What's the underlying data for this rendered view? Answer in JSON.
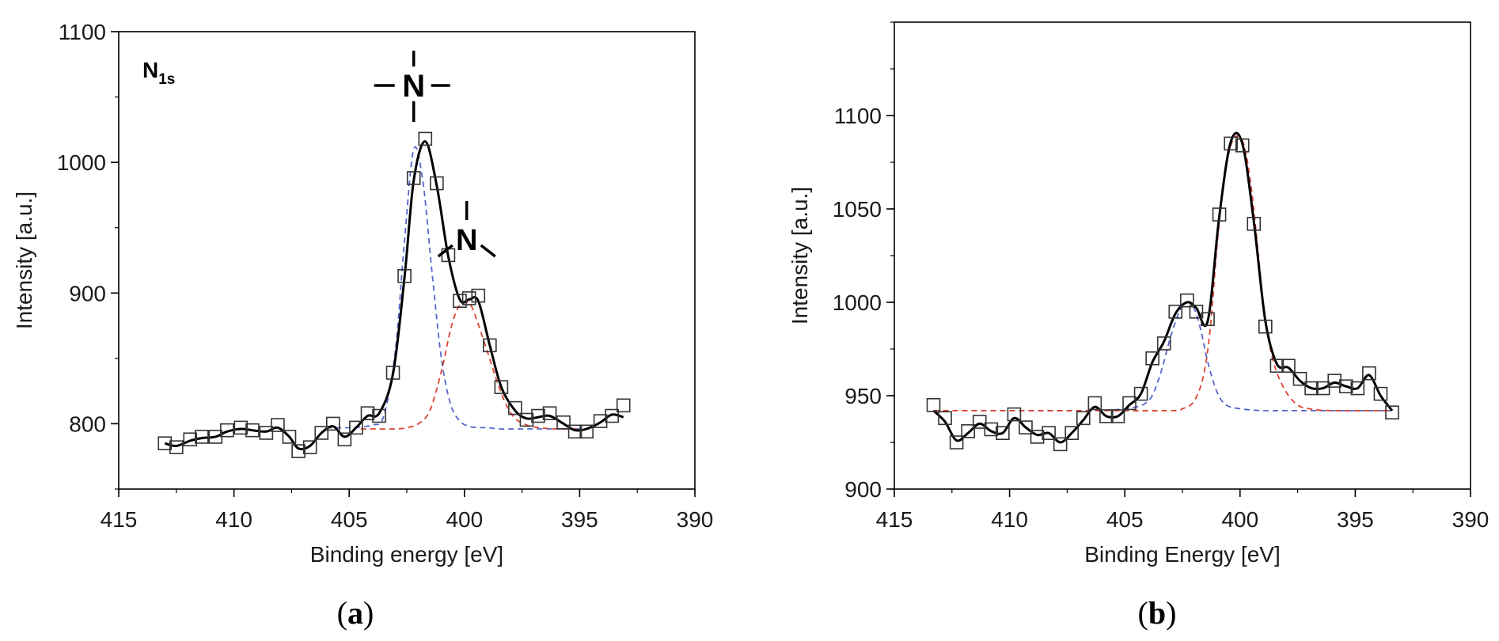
{
  "chart_data": [
    {
      "panel": "a",
      "type": "scatter",
      "xlabel": "Binding energy [eV]",
      "ylabel": "Intensity [a.u.]",
      "xlim": [
        415,
        390
      ],
      "ylim": [
        750,
        1100
      ],
      "xticks": [
        415,
        410,
        405,
        400,
        395,
        390
      ],
      "yticks": [
        800,
        900,
        1000,
        1100
      ],
      "annotations": {
        "label": "N",
        "subscript": "1s",
        "peak_symbol_1": "N",
        "peak_symbol_2": "N"
      },
      "colors": {
        "fit": "#000000",
        "component_1": "#5566cc",
        "component_2": "#dd4433"
      },
      "series": [
        {
          "kind": "markers",
          "x": [
            413.0,
            412.5,
            411.9,
            411.4,
            410.8,
            410.3,
            409.7,
            409.2,
            408.6,
            408.1,
            407.6,
            407.2,
            406.7,
            406.2,
            405.7,
            405.2,
            404.7,
            404.2,
            403.7,
            403.1,
            402.6,
            402.2,
            401.7,
            401.2,
            400.7,
            400.2,
            399.8,
            399.4,
            398.9,
            398.4,
            397.8,
            397.3,
            396.8,
            396.3,
            395.7,
            395.2,
            394.7,
            394.1,
            393.6,
            393.1
          ],
          "y": [
            785,
            782,
            788,
            790,
            790,
            795,
            797,
            795,
            793,
            799,
            790,
            779,
            782,
            793,
            800,
            788,
            797,
            808,
            806,
            839,
            913,
            988,
            1018,
            984,
            929,
            894,
            896,
            898,
            860,
            828,
            812,
            803,
            806,
            808,
            801,
            794,
            794,
            802,
            806,
            814
          ]
        },
        {
          "kind": "fit",
          "x": [
            413.0,
            412.5,
            411.9,
            411.4,
            410.8,
            410.3,
            409.7,
            409.2,
            408.6,
            408.1,
            407.6,
            407.2,
            406.7,
            406.2,
            405.7,
            405.2,
            404.7,
            404.2,
            403.7,
            403.1,
            402.6,
            402.2,
            401.7,
            401.2,
            400.7,
            400.2,
            399.8,
            399.4,
            398.9,
            398.4,
            397.8,
            397.3,
            396.8,
            396.3,
            395.7,
            395.2,
            394.7,
            394.1,
            393.6,
            393.1
          ],
          "y": [
            785,
            783,
            787,
            789,
            790,
            794,
            796,
            795,
            794,
            797,
            790,
            781,
            783,
            793,
            798,
            790,
            797,
            806,
            808,
            838,
            912,
            986,
            1016,
            982,
            928,
            895,
            895,
            894,
            860,
            828,
            810,
            804,
            805,
            806,
            800,
            795,
            796,
            801,
            807,
            805
          ]
        },
        {
          "kind": "component-1",
          "x": [
            406.0,
            405.0,
            404.0,
            403.5,
            403.0,
            402.6,
            402.2,
            401.8,
            401.4,
            401.0,
            400.6,
            400.2,
            399.8,
            399.4,
            399.0,
            398.5,
            398.0,
            397.0,
            396.0,
            395.0
          ],
          "y": [
            797,
            797,
            799,
            806,
            855,
            940,
            1010,
            985,
            915,
            850,
            815,
            802,
            798,
            797,
            797,
            796,
            796,
            796,
            796,
            796
          ]
        },
        {
          "kind": "component-2",
          "x": [
            404.5,
            404.0,
            403.0,
            402.5,
            402.0,
            401.5,
            401.0,
            400.6,
            400.3,
            400.0,
            399.7,
            399.4,
            399.0,
            398.6,
            398.2,
            397.8,
            397.3,
            396.8,
            396.0,
            395.0
          ],
          "y": [
            796,
            796,
            796,
            797,
            800,
            810,
            840,
            872,
            888,
            893,
            890,
            876,
            855,
            833,
            815,
            804,
            799,
            797,
            796,
            796
          ]
        }
      ]
    },
    {
      "panel": "b",
      "type": "scatter",
      "xlabel": "Binding Energy [eV]",
      "ylabel": "Intensity [a.u.]",
      "xlim": [
        415,
        390
      ],
      "ylim": [
        900,
        1150
      ],
      "xticks": [
        415,
        410,
        405,
        400,
        395,
        390
      ],
      "yticks": [
        900,
        950,
        1000,
        1050,
        1100
      ],
      "colors": {
        "fit": "#000000",
        "component_1": "#5566cc",
        "component_2": "#dd4433"
      },
      "series": [
        {
          "kind": "markers",
          "x": [
            413.3,
            412.8,
            412.3,
            411.8,
            411.3,
            410.8,
            410.3,
            409.8,
            409.3,
            408.8,
            408.3,
            407.8,
            407.3,
            406.8,
            406.3,
            405.8,
            405.3,
            404.8,
            404.3,
            403.8,
            403.3,
            402.8,
            402.3,
            401.9,
            401.4,
            400.9,
            400.4,
            399.9,
            399.4,
            398.9,
            398.4,
            397.9,
            397.4,
            396.9,
            396.4,
            395.9,
            395.4,
            394.9,
            394.4,
            393.9,
            393.4
          ],
          "y": [
            945,
            938,
            925,
            931,
            936,
            932,
            930,
            940,
            933,
            928,
            930,
            924,
            930,
            938,
            946,
            939,
            939,
            946,
            951,
            970,
            978,
            995,
            1001,
            995,
            991,
            1047,
            1085,
            1084,
            1042,
            987,
            966,
            966,
            959,
            954,
            954,
            958,
            955,
            954,
            962,
            951,
            941
          ]
        },
        {
          "kind": "fit",
          "x": [
            413.3,
            412.8,
            412.3,
            411.8,
            411.3,
            410.8,
            410.3,
            409.8,
            409.3,
            408.8,
            408.3,
            407.8,
            407.3,
            406.8,
            406.3,
            405.8,
            405.3,
            404.8,
            404.3,
            403.8,
            403.3,
            402.8,
            402.3,
            401.9,
            401.4,
            400.9,
            400.4,
            399.9,
            399.4,
            398.9,
            398.4,
            397.9,
            397.4,
            396.9,
            396.4,
            395.9,
            395.4,
            394.9,
            394.4,
            393.9,
            393.4
          ],
          "y": [
            942,
            936,
            926,
            930,
            935,
            931,
            930,
            938,
            933,
            929,
            930,
            925,
            930,
            937,
            944,
            939,
            939,
            945,
            951,
            968,
            979,
            994,
            1000,
            997,
            990,
            1046,
            1086,
            1085,
            1043,
            990,
            967,
            965,
            958,
            954,
            954,
            957,
            955,
            954,
            961,
            950,
            942
          ]
        },
        {
          "kind": "component-1",
          "x": [
            413.3,
            410.0,
            407.0,
            405.0,
            404.0,
            403.5,
            403.0,
            402.6,
            402.3,
            402.0,
            401.7,
            401.4,
            401.0,
            400.6,
            400.0,
            399.0,
            398.0,
            396.0,
            394.0,
            393.4
          ],
          "y": [
            942,
            942,
            942,
            943,
            947,
            960,
            982,
            996,
            1000,
            997,
            985,
            968,
            952,
            945,
            943,
            942,
            942,
            942,
            942,
            942
          ]
        },
        {
          "kind": "component-2",
          "x": [
            413.3,
            410.0,
            406.0,
            403.0,
            402.5,
            402.0,
            401.6,
            401.3,
            401.0,
            400.7,
            400.4,
            400.1,
            399.8,
            399.5,
            399.2,
            398.9,
            398.5,
            398.0,
            397.5,
            397.0,
            396.0,
            393.4
          ],
          "y": [
            942,
            942,
            942,
            942,
            943,
            947,
            960,
            985,
            1030,
            1065,
            1084,
            1089,
            1083,
            1060,
            1025,
            990,
            966,
            952,
            945,
            943,
            942,
            942
          ]
        }
      ]
    }
  ],
  "panel_labels": [
    "a",
    "b"
  ]
}
